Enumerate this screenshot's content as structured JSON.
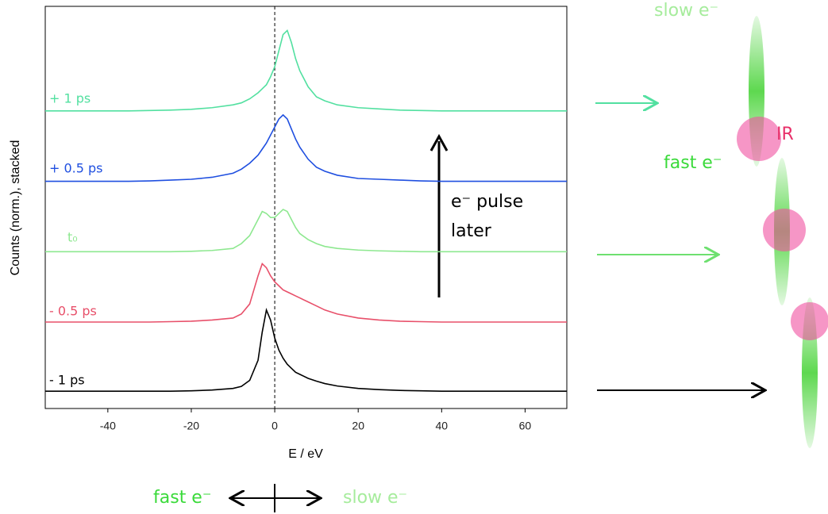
{
  "chart_data": {
    "type": "line",
    "x_label": "E / eV",
    "y_label": "Counts (norm.), stacked",
    "xlim": [
      -55,
      70
    ],
    "xticks": [
      -40,
      -20,
      0,
      20,
      40,
      60
    ],
    "ylim": [
      0,
      10
    ],
    "reference_line_x": 0,
    "x": [
      -55,
      -50,
      -45,
      -40,
      -35,
      -30,
      -25,
      -20,
      -15,
      -10,
      -8,
      -6,
      -4,
      -3,
      -2,
      -1,
      0,
      1,
      2,
      3,
      4,
      5,
      6,
      8,
      10,
      12,
      15,
      20,
      25,
      30,
      35,
      40,
      45,
      50,
      55,
      60,
      65,
      70
    ],
    "series": [
      {
        "name": "- 1 ps",
        "color": "#000000",
        "values": [
          0.43,
          0.43,
          0.43,
          0.43,
          0.43,
          0.43,
          0.43,
          0.44,
          0.46,
          0.5,
          0.55,
          0.7,
          1.2,
          1.9,
          2.45,
          2.2,
          1.75,
          1.45,
          1.25,
          1.1,
          1.0,
          0.9,
          0.85,
          0.75,
          0.68,
          0.62,
          0.56,
          0.5,
          0.47,
          0.45,
          0.44,
          0.43,
          0.43,
          0.43,
          0.43,
          0.43,
          0.43,
          0.43
        ]
      },
      {
        "name": "- 0.5 ps",
        "color": "#e8506a",
        "values": [
          2.15,
          2.15,
          2.15,
          2.15,
          2.15,
          2.15,
          2.16,
          2.17,
          2.2,
          2.25,
          2.35,
          2.6,
          3.3,
          3.6,
          3.5,
          3.3,
          3.15,
          3.05,
          2.95,
          2.9,
          2.85,
          2.8,
          2.75,
          2.65,
          2.55,
          2.45,
          2.35,
          2.25,
          2.2,
          2.17,
          2.16,
          2.15,
          2.15,
          2.15,
          2.15,
          2.15,
          2.15,
          2.15
        ]
      },
      {
        "name": "t₀",
        "color": "#8ee890",
        "values": [
          3.9,
          3.9,
          3.9,
          3.9,
          3.9,
          3.9,
          3.9,
          3.91,
          3.93,
          3.98,
          4.1,
          4.3,
          4.7,
          4.9,
          4.85,
          4.75,
          4.75,
          4.85,
          4.95,
          4.9,
          4.7,
          4.5,
          4.35,
          4.2,
          4.1,
          4.03,
          3.98,
          3.94,
          3.92,
          3.91,
          3.9,
          3.9,
          3.9,
          3.9,
          3.9,
          3.9,
          3.9,
          3.9
        ]
      },
      {
        "name": "+ 0.5 ps",
        "color": "#1f4fe0",
        "values": [
          5.65,
          5.65,
          5.65,
          5.65,
          5.65,
          5.66,
          5.68,
          5.7,
          5.75,
          5.85,
          5.95,
          6.1,
          6.3,
          6.45,
          6.6,
          6.8,
          7.0,
          7.2,
          7.3,
          7.2,
          6.95,
          6.7,
          6.5,
          6.2,
          6.0,
          5.9,
          5.8,
          5.72,
          5.7,
          5.68,
          5.66,
          5.65,
          5.65,
          5.65,
          5.65,
          5.65,
          5.65,
          5.65
        ]
      },
      {
        "name": "+ 1 ps",
        "color": "#52e0a0",
        "values": [
          7.4,
          7.4,
          7.4,
          7.4,
          7.4,
          7.41,
          7.42,
          7.44,
          7.48,
          7.55,
          7.6,
          7.7,
          7.85,
          7.95,
          8.05,
          8.25,
          8.5,
          8.9,
          9.3,
          9.4,
          9.1,
          8.7,
          8.4,
          8.0,
          7.75,
          7.65,
          7.55,
          7.48,
          7.45,
          7.42,
          7.41,
          7.4,
          7.4,
          7.4,
          7.4,
          7.4,
          7.4,
          7.4
        ]
      }
    ],
    "annotation": [
      "e⁻ pulse",
      "later"
    ]
  },
  "diagram": {
    "top_label": "slow e⁻",
    "ir_label": "IR",
    "fast_label": "fast e⁻",
    "bottom_left": "fast e⁻",
    "bottom_right": "slow e⁻"
  }
}
